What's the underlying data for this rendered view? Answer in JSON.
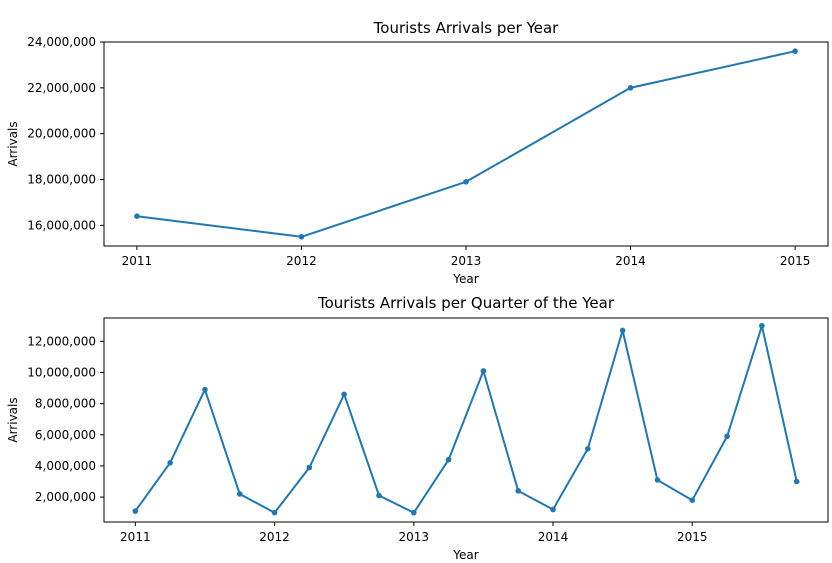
{
  "chart_data": [
    {
      "type": "line",
      "title": "Tourists Arrivals per Year",
      "xlabel": "Year",
      "ylabel": "Arrivals",
      "x": [
        2011,
        2012,
        2013,
        2014,
        2015
      ],
      "series": [
        {
          "values": [
            16400000,
            15500000,
            17900000,
            22000000,
            23600000
          ]
        }
      ],
      "xticks": [
        2011,
        2012,
        2013,
        2014,
        2015
      ],
      "xtick_labels": [
        "2011",
        "2012",
        "2013",
        "2014",
        "2015"
      ],
      "yticks": [
        16000000,
        18000000,
        20000000,
        22000000,
        24000000
      ],
      "ytick_labels": [
        "16,000,000",
        "18,000,000",
        "20,000,000",
        "22,000,000",
        "24,000,000"
      ],
      "xlim": [
        2010.8,
        2015.2
      ],
      "ylim": [
        15100000,
        24000000
      ],
      "grid": false,
      "color": "#1f77b4"
    },
    {
      "type": "line",
      "title": "Tourists Arrivals per Quarter of the Year",
      "xlabel": "Year",
      "ylabel": "Arrivals",
      "x": [
        2011.0,
        2011.25,
        2011.5,
        2011.75,
        2012.0,
        2012.25,
        2012.5,
        2012.75,
        2013.0,
        2013.25,
        2013.5,
        2013.75,
        2014.0,
        2014.25,
        2014.5,
        2014.75,
        2015.0,
        2015.25,
        2015.5,
        2015.75
      ],
      "series": [
        {
          "values": [
            1100000,
            4200000,
            8900000,
            2200000,
            1000000,
            3900000,
            8600000,
            2100000,
            1000000,
            4400000,
            10100000,
            2400000,
            1200000,
            5100000,
            12700000,
            3100000,
            1800000,
            5900000,
            13000000,
            3000000
          ]
        }
      ],
      "xticks": [
        2011,
        2012,
        2013,
        2014,
        2015
      ],
      "xtick_labels": [
        "2011",
        "2012",
        "2013",
        "2014",
        "2015"
      ],
      "yticks": [
        2000000,
        4000000,
        6000000,
        8000000,
        10000000,
        12000000
      ],
      "ytick_labels": [
        "2,000,000",
        "4,000,000",
        "6,000,000",
        "8,000,000",
        "10,000,000",
        "12,000,000"
      ],
      "xlim": [
        2010.775,
        2015.975
      ],
      "ylim": [
        400000,
        13500000
      ],
      "grid": false,
      "color": "#1f77b4"
    }
  ]
}
